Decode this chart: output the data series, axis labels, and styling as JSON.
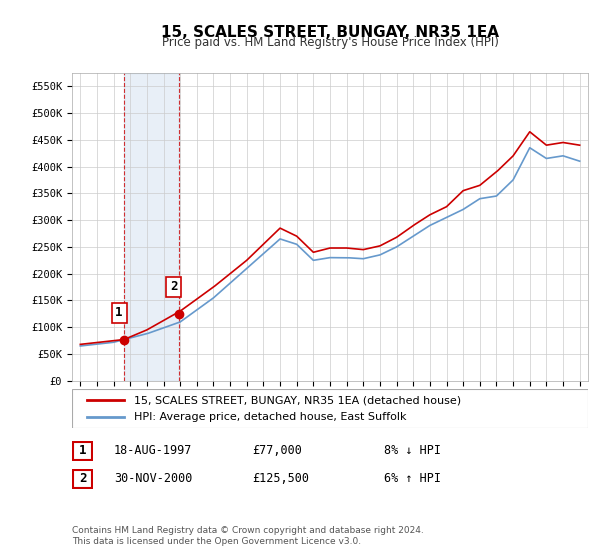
{
  "title": "15, SCALES STREET, BUNGAY, NR35 1EA",
  "subtitle": "Price paid vs. HM Land Registry's House Price Index (HPI)",
  "xlabel": "",
  "ylabel": "",
  "background_color": "#ffffff",
  "plot_bg_color": "#ffffff",
  "grid_color": "#cccccc",
  "hpi_color": "#6699cc",
  "price_color": "#cc0000",
  "sale1_date": 1997.625,
  "sale1_price": 77000,
  "sale1_label": "1",
  "sale2_date": 2000.917,
  "sale2_price": 125500,
  "sale2_label": "2",
  "shade_x1": 1997.625,
  "shade_x2": 2000.917,
  "legend_line1": "15, SCALES STREET, BUNGAY, NR35 1EA (detached house)",
  "legend_line2": "HPI: Average price, detached house, East Suffolk",
  "table_row1": [
    "1",
    "18-AUG-1997",
    "£77,000",
    "8% ↓ HPI"
  ],
  "table_row2": [
    "2",
    "30-NOV-2000",
    "£125,500",
    "6% ↑ HPI"
  ],
  "footnote": "Contains HM Land Registry data © Crown copyright and database right 2024.\nThis data is licensed under the Open Government Licence v3.0.",
  "ylim": [
    0,
    575000
  ],
  "xlim": [
    1994.5,
    2025.5
  ],
  "yticks": [
    0,
    50000,
    100000,
    150000,
    200000,
    250000,
    300000,
    350000,
    400000,
    450000,
    500000,
    550000
  ],
  "ytick_labels": [
    "£0",
    "£50K",
    "£100K",
    "£150K",
    "£200K",
    "£250K",
    "£300K",
    "£350K",
    "£400K",
    "£450K",
    "£500K",
    "£550K"
  ],
  "xticks": [
    1995,
    1996,
    1997,
    1998,
    1999,
    2000,
    2001,
    2002,
    2003,
    2004,
    2005,
    2006,
    2007,
    2008,
    2009,
    2010,
    2011,
    2012,
    2013,
    2014,
    2015,
    2016,
    2017,
    2018,
    2019,
    2020,
    2021,
    2022,
    2023,
    2024,
    2025
  ]
}
